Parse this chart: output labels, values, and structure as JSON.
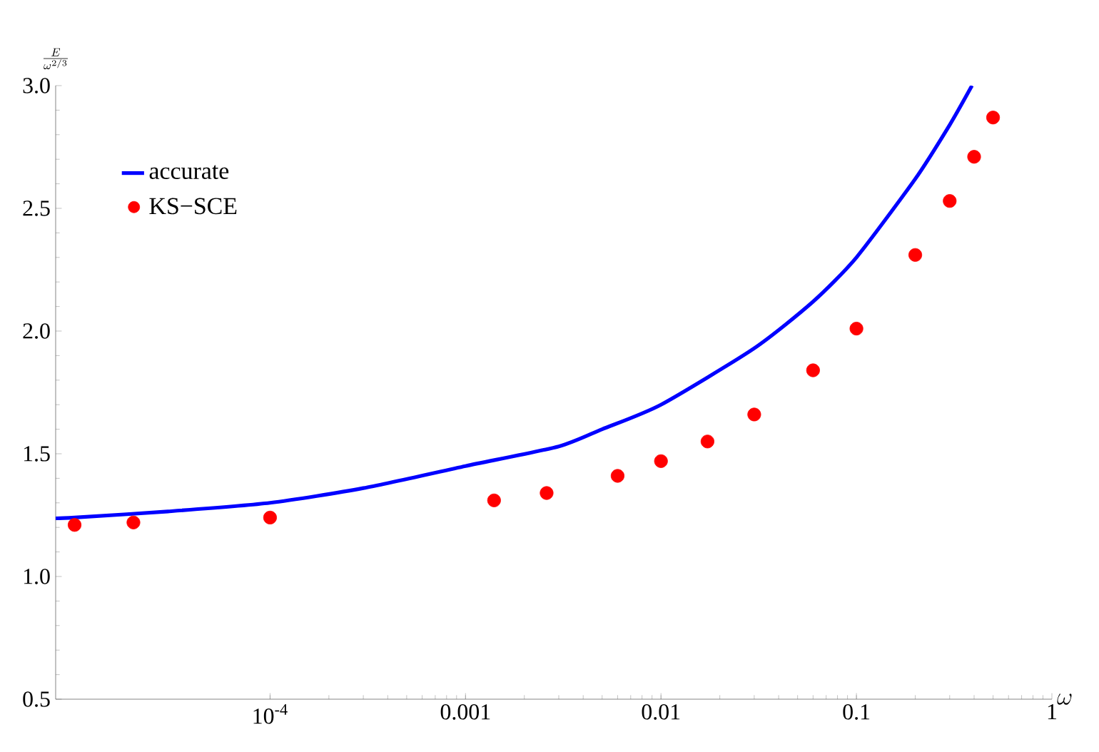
{
  "chart_data": {
    "type": "scatter",
    "xlabel": "\\omega",
    "ylabel": "\\frac{E}{\\omega^{2/3}}",
    "log": "x",
    "xlim": [
      8e-06,
      1
    ],
    "ylim": [
      0.5,
      3.0
    ],
    "xticks": [
      {
        "value": 0.0001,
        "label": "10$^{-4}$"
      },
      {
        "value": 0.001,
        "label": "0.001"
      },
      {
        "value": 0.01,
        "label": "0.01"
      },
      {
        "value": 0.1,
        "label": "0.1"
      },
      {
        "value": 1,
        "label": "1"
      }
    ],
    "yticks": [
      {
        "value": 0.5,
        "label": "0.5"
      },
      {
        "value": 1.0,
        "label": "1.0"
      },
      {
        "value": 1.5,
        "label": "1.5"
      },
      {
        "value": 2.0,
        "label": "2.0"
      },
      {
        "value": 2.5,
        "label": "2.5"
      },
      {
        "value": 3.0,
        "label": "3.0"
      }
    ],
    "legend": "top left",
    "grid": false,
    "series": [
      {
        "name": "accurate",
        "type": "line",
        "color": "#0000ff",
        "marker": "none",
        "line_style": "solid",
        "x": [
          8e-06,
          1e-05,
          3e-05,
          0.0001,
          0.0003,
          0.001,
          0.003,
          0.005,
          0.01,
          0.03,
          0.06,
          0.1,
          0.2,
          0.3,
          0.39
        ],
        "values": [
          1.237,
          1.24,
          1.265,
          1.3,
          1.36,
          1.45,
          1.53,
          1.6,
          1.7,
          1.93,
          2.12,
          2.3,
          2.62,
          2.84,
          3.0
        ]
      },
      {
        "name": "KS−SCE",
        "color": "#ff0000",
        "marker": "circle",
        "x": [
          1e-05,
          2e-05,
          0.0001,
          0.0014,
          0.0026,
          0.006,
          0.01,
          0.0173,
          0.03,
          0.06,
          0.1,
          0.2,
          0.3,
          0.4,
          0.5
        ],
        "values": [
          1.21,
          1.22,
          1.24,
          1.31,
          1.34,
          1.41,
          1.47,
          1.55,
          1.66,
          1.84,
          2.01,
          2.31,
          2.53,
          2.71,
          2.87
        ]
      }
    ]
  }
}
